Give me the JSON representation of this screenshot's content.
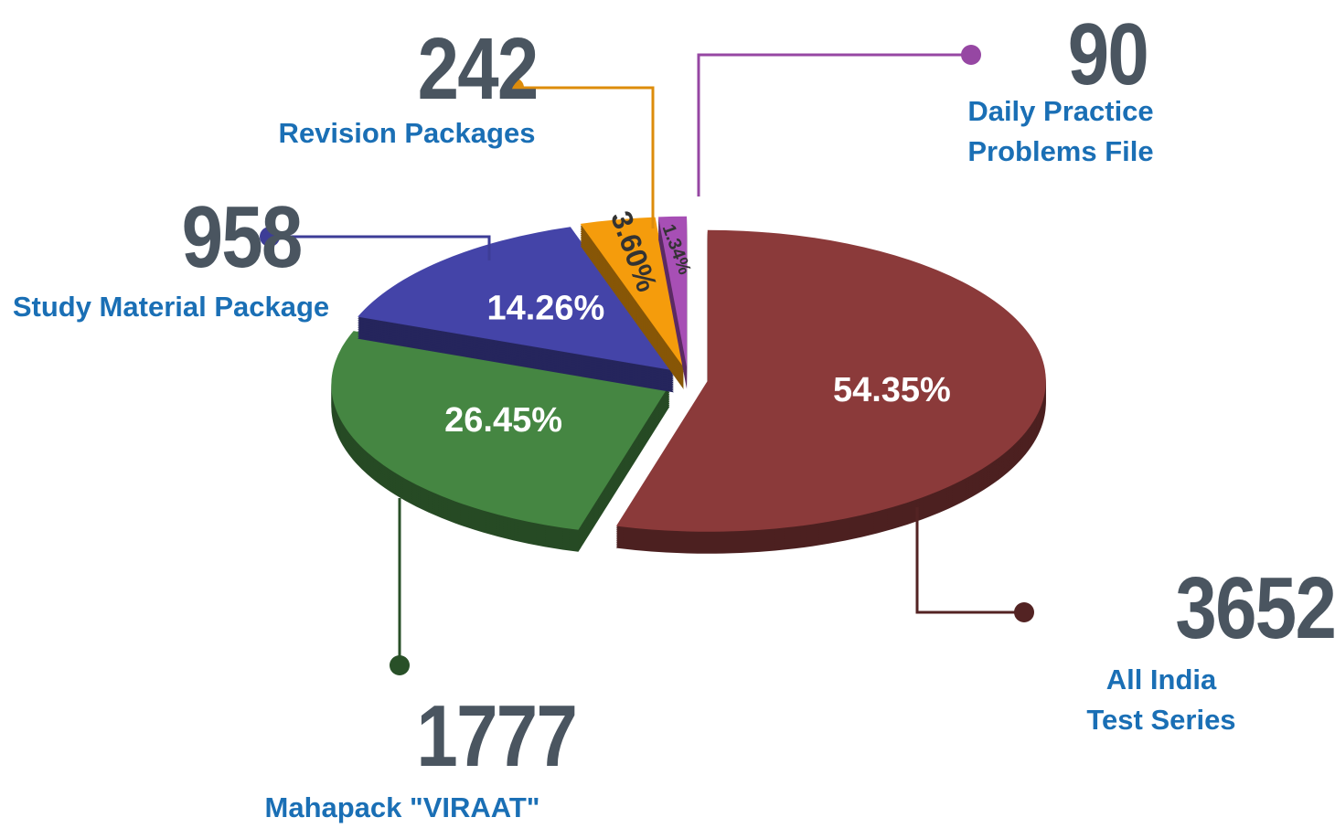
{
  "chart_data": {
    "type": "pie",
    "categories": [
      "All India Test Series",
      "Mahapack \"VIRAAT\"",
      "Study Material Package",
      "Revision Packages",
      "Daily Practice Problems File"
    ],
    "values": [
      54.35,
      26.45,
      14.26,
      3.6,
      1.34
    ],
    "value_labels": [
      "54.35%",
      "26.45%",
      "14.26%",
      "3.60%",
      "1.34%"
    ],
    "counts": [
      3652,
      1777,
      958,
      242,
      90
    ],
    "colors": [
      "#8b3a3a",
      "#458642",
      "#4444a8",
      "#f59c0c",
      "#a74fb5"
    ]
  }
}
